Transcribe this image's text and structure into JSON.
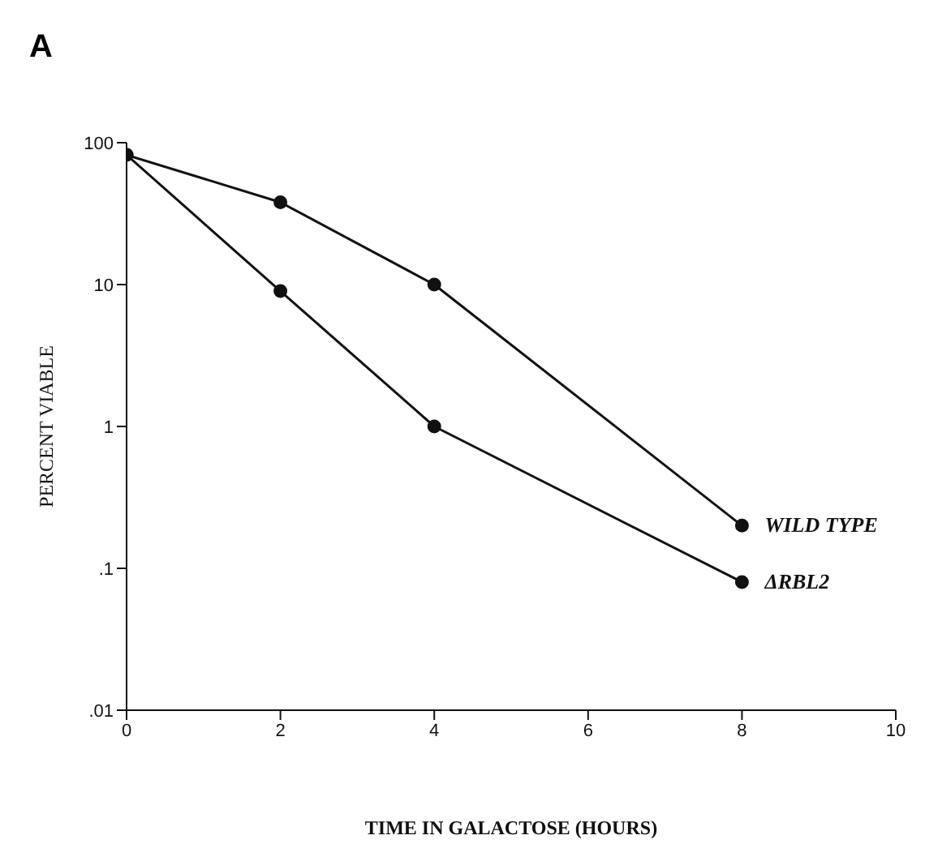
{
  "chart_data": {
    "type": "line",
    "title": "A",
    "xlabel": "TIME IN GALACTOSE (HOURS)",
    "ylabel": "PERCENT VIABLE",
    "x": [
      0,
      2,
      4,
      8
    ],
    "series": [
      {
        "name": "WILD TYPE",
        "color": "#111111",
        "values": [
          82,
          38,
          10,
          0.2
        ]
      },
      {
        "name": "ΔRBL2",
        "color": "#111111",
        "values": [
          82,
          9,
          1,
          0.08
        ]
      }
    ],
    "xlim": [
      0,
      10
    ],
    "xticks": [
      0,
      2,
      4,
      6,
      8,
      10
    ],
    "ylim": [
      0.01,
      100
    ],
    "yticks": [
      {
        "value": 0.01,
        "label": ".01"
      },
      {
        "value": 0.1,
        "label": ".1"
      },
      1,
      10,
      100
    ],
    "log": "y",
    "marker": "circle",
    "line_style": "solid"
  }
}
